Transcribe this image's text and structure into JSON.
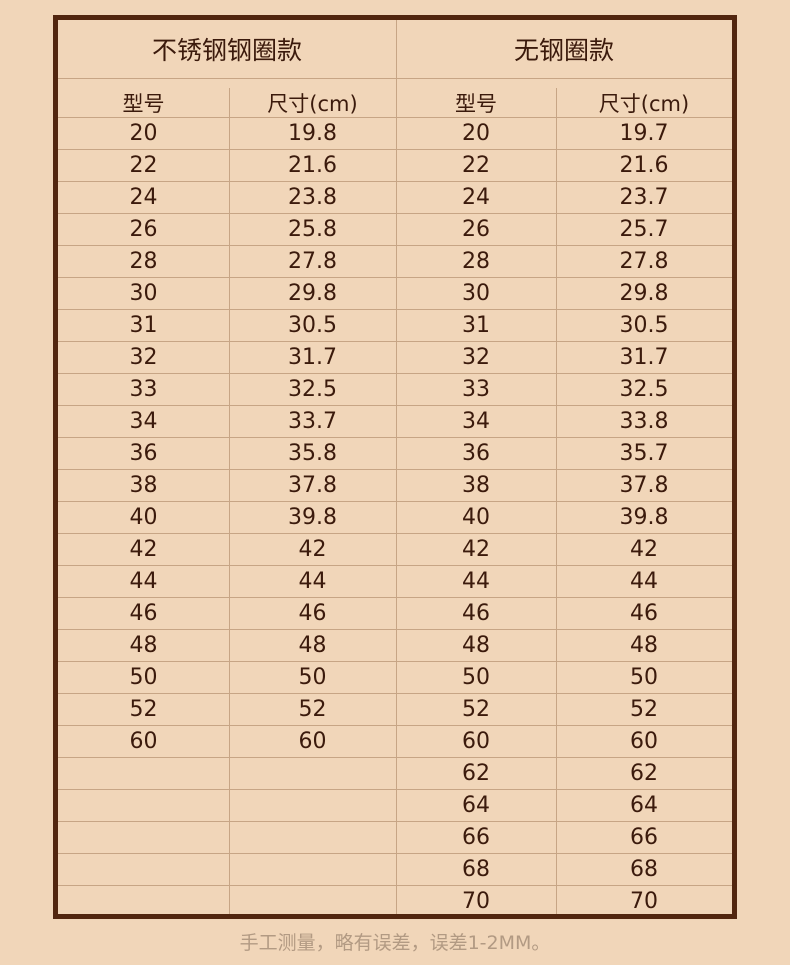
{
  "tables": [
    {
      "title": "不锈钢钢圈款",
      "headers": [
        "型号",
        "尺寸(cm)"
      ],
      "rows": [
        [
          "20",
          "19.8"
        ],
        [
          "22",
          "21.6"
        ],
        [
          "24",
          "23.8"
        ],
        [
          "26",
          "25.8"
        ],
        [
          "28",
          "27.8"
        ],
        [
          "30",
          "29.8"
        ],
        [
          "31",
          "30.5"
        ],
        [
          "32",
          "31.7"
        ],
        [
          "33",
          "32.5"
        ],
        [
          "34",
          "33.7"
        ],
        [
          "36",
          "35.8"
        ],
        [
          "38",
          "37.8"
        ],
        [
          "40",
          "39.8"
        ],
        [
          "42",
          "42"
        ],
        [
          "44",
          "44"
        ],
        [
          "46",
          "46"
        ],
        [
          "48",
          "48"
        ],
        [
          "50",
          "50"
        ],
        [
          "52",
          "52"
        ],
        [
          "60",
          "60"
        ]
      ]
    },
    {
      "title": "无钢圈款",
      "headers": [
        "型号",
        "尺寸(cm)"
      ],
      "rows": [
        [
          "20",
          "19.7"
        ],
        [
          "22",
          "21.6"
        ],
        [
          "24",
          "23.7"
        ],
        [
          "26",
          "25.7"
        ],
        [
          "28",
          "27.8"
        ],
        [
          "30",
          "29.8"
        ],
        [
          "31",
          "30.5"
        ],
        [
          "32",
          "31.7"
        ],
        [
          "33",
          "32.5"
        ],
        [
          "34",
          "33.8"
        ],
        [
          "36",
          "35.7"
        ],
        [
          "38",
          "37.8"
        ],
        [
          "40",
          "39.8"
        ],
        [
          "42",
          "42"
        ],
        [
          "44",
          "44"
        ],
        [
          "46",
          "46"
        ],
        [
          "48",
          "48"
        ],
        [
          "50",
          "50"
        ],
        [
          "52",
          "52"
        ],
        [
          "60",
          "60"
        ],
        [
          "62",
          "62"
        ],
        [
          "64",
          "64"
        ],
        [
          "66",
          "66"
        ],
        [
          "68",
          "68"
        ],
        [
          "70",
          "70"
        ]
      ]
    }
  ],
  "footer": "手工测量，略有误差，误差1-2MM。",
  "colors": {
    "background": "#f1d6b9",
    "border": "#52260f",
    "gridline": "#c7a585",
    "text": "#3b1a0c",
    "footer_text": "#b29a83"
  }
}
